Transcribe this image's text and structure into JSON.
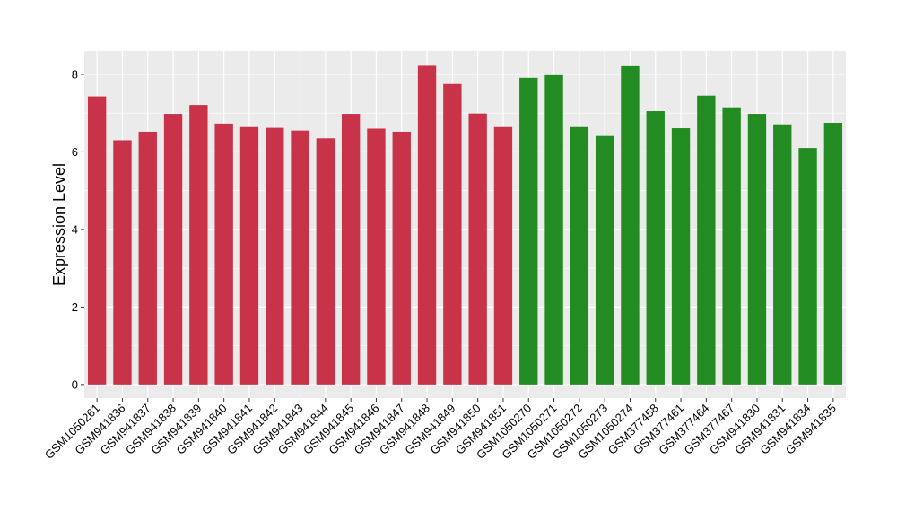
{
  "chart_data": {
    "type": "bar",
    "ylabel": "Expression Level",
    "xlabel": "",
    "ylim": [
      -0.35,
      8.6
    ],
    "yticks": [
      0,
      2,
      4,
      6,
      8
    ],
    "grid": true,
    "colors": {
      "group1": "#c8334a",
      "group2": "#228b22",
      "panel": "#ebebeb",
      "grid": "#ffffff"
    },
    "categories": [
      "GSM1050261",
      "GSM941836",
      "GSM941837",
      "GSM941838",
      "GSM941839",
      "GSM941840",
      "GSM941841",
      "GSM941842",
      "GSM941843",
      "GSM941844",
      "GSM941845",
      "GSM941846",
      "GSM941847",
      "GSM941848",
      "GSM941849",
      "GSM941850",
      "GSM941851",
      "GSM1050270",
      "GSM1050271",
      "GSM1050272",
      "GSM1050273",
      "GSM1050274",
      "GSM377458",
      "GSM377461",
      "GSM377464",
      "GSM377467",
      "GSM941830",
      "GSM941831",
      "GSM941834",
      "GSM941835"
    ],
    "values": [
      7.43,
      6.3,
      6.52,
      6.98,
      7.21,
      6.73,
      6.64,
      6.62,
      6.55,
      6.35,
      6.98,
      6.6,
      6.52,
      8.22,
      7.75,
      6.99,
      6.64,
      7.91,
      7.98,
      6.64,
      6.41,
      8.21,
      7.05,
      6.61,
      7.45,
      7.15,
      6.98,
      6.71,
      6.1,
      6.75
    ],
    "groups": [
      "group1",
      "group1",
      "group1",
      "group1",
      "group1",
      "group1",
      "group1",
      "group1",
      "group1",
      "group1",
      "group1",
      "group1",
      "group1",
      "group1",
      "group1",
      "group1",
      "group1",
      "group2",
      "group2",
      "group2",
      "group2",
      "group2",
      "group2",
      "group2",
      "group2",
      "group2",
      "group2",
      "group2",
      "group2",
      "group2"
    ]
  }
}
